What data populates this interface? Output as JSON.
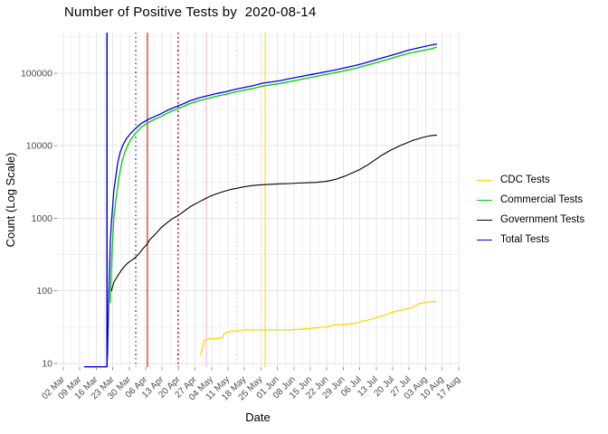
{
  "header": {
    "title": "Number of Positive Tests by  2020-08-14"
  },
  "chart_data": {
    "type": "line",
    "title": "Number of Positive Tests by  2020-08-14",
    "xlabel": "Date",
    "ylabel": "Count (Log Scale)",
    "y_scale": "log10",
    "ylim": [
      9,
      360000
    ],
    "x_unit": "days since 02 Mar 2020",
    "grid": "on",
    "legend_position": "right",
    "x_ticks": [
      {
        "day": 0,
        "label": "02 Mar"
      },
      {
        "day": 7,
        "label": "09 Mar"
      },
      {
        "day": 14,
        "label": "16 Mar"
      },
      {
        "day": 21,
        "label": "23 Mar"
      },
      {
        "day": 28,
        "label": "30 Mar"
      },
      {
        "day": 35,
        "label": "06 Apr"
      },
      {
        "day": 42,
        "label": "13 Apr"
      },
      {
        "day": 49,
        "label": "20 Apr"
      },
      {
        "day": 56,
        "label": "27 Apr"
      },
      {
        "day": 63,
        "label": "04 May"
      },
      {
        "day": 70,
        "label": "11 May"
      },
      {
        "day": 77,
        "label": "18 May"
      },
      {
        "day": 84,
        "label": "25 May"
      },
      {
        "day": 91,
        "label": "01 Jun"
      },
      {
        "day": 98,
        "label": "08 Jun"
      },
      {
        "day": 105,
        "label": "15 Jun"
      },
      {
        "day": 112,
        "label": "22 Jun"
      },
      {
        "day": 119,
        "label": "29 Jun"
      },
      {
        "day": 126,
        "label": "06 Jul"
      },
      {
        "day": 133,
        "label": "13 Jul"
      },
      {
        "day": 140,
        "label": "20 Jul"
      },
      {
        "day": 147,
        "label": "27 Jul"
      },
      {
        "day": 154,
        "label": "03 Aug"
      },
      {
        "day": 161,
        "label": "10 Aug"
      },
      {
        "day": 168,
        "label": "17 Aug"
      }
    ],
    "y_ticks": [
      {
        "value": 10,
        "label": "10"
      },
      {
        "value": 100,
        "label": "100"
      },
      {
        "value": 1000,
        "label": "1000"
      },
      {
        "value": 10000,
        "label": "10000"
      },
      {
        "value": 100000,
        "label": "100000"
      }
    ],
    "vlines": [
      {
        "day": 18.5,
        "color": "#0000CD",
        "dash": "solid"
      },
      {
        "day": 30.8,
        "color": "#00008B",
        "dash": "dotted"
      },
      {
        "day": 35.8,
        "color": "#CC0000",
        "dash": "solid"
      },
      {
        "day": 48.8,
        "color": "#CC0000",
        "dash": "dotted"
      },
      {
        "day": 60.8,
        "color": "#FFAEC0",
        "dash": "solid"
      },
      {
        "day": 73.8,
        "color": "#FFD5DE",
        "dash": "dotted"
      },
      {
        "day": 85.8,
        "color": "#FFD700",
        "dash": "solid"
      }
    ],
    "series": [
      {
        "name": "CDC Tests",
        "color": "#FFD700",
        "width": 1.3,
        "days": [
          58.1,
          58.8,
          59.2,
          60.0,
          62.7,
          65.4,
          67.7,
          68.5,
          70.0,
          71.5,
          73.8,
          76.2,
          80.8,
          88.5,
          96.2,
          103.8,
          107.7,
          112.3,
          115.4,
          118.5,
          121.5,
          124.6,
          126.9,
          130.0,
          133.1,
          136.2,
          139.2,
          142.3,
          145.4,
          148.1,
          150.0,
          151.5,
          153.8,
          156.2,
          158.8
        ],
        "counts": [
          13,
          15,
          17,
          21,
          22,
          22,
          23,
          26,
          27,
          28,
          28,
          29,
          29,
          29,
          29,
          30,
          31,
          32,
          34,
          34,
          35,
          36,
          38,
          40,
          43,
          46,
          50,
          53,
          56,
          58,
          64,
          67,
          69,
          71,
          71
        ]
      },
      {
        "name": "Commercial Tests",
        "color": "#00CC00",
        "width": 1.3,
        "days": [
          20.0,
          20.4,
          20.8,
          21.2,
          21.5,
          22.3,
          23.1,
          23.8,
          25.0,
          26.2,
          27.3,
          28.8,
          30.8,
          33.1,
          35.8,
          38.5,
          41.2,
          44.2,
          47.3,
          50.8,
          53.8,
          57.7,
          61.5,
          65.4,
          69.2,
          73.1,
          76.9,
          80.8,
          84.6,
          88.5,
          92.3,
          96.2,
          100.0,
          103.8,
          107.7,
          111.5,
          115.4,
          119.2,
          123.1,
          126.9,
          130.8,
          134.6,
          138.5,
          142.3,
          146.2,
          150.0,
          153.8,
          156.5,
          158.8
        ],
        "counts": [
          68,
          187,
          380,
          675,
          1040,
          1740,
          2680,
          3880,
          6150,
          8180,
          10000,
          12300,
          14900,
          17900,
          20600,
          22800,
          24900,
          28000,
          31000,
          34400,
          38100,
          41500,
          44800,
          48100,
          51100,
          54800,
          58100,
          61500,
          66000,
          69000,
          71900,
          76100,
          80500,
          85200,
          90100,
          95400,
          101000,
          107000,
          114000,
          123000,
          133000,
          144000,
          156000,
          170000,
          184000,
          196000,
          208000,
          216000,
          228000
        ]
      },
      {
        "name": "Government Tests",
        "color": "#000000",
        "width": 1.1,
        "days": [
          20.4,
          21.5,
          23.1,
          24.6,
          26.2,
          27.7,
          29.2,
          30.8,
          32.3,
          33.8,
          35.4,
          36.9,
          38.5,
          40.0,
          41.5,
          43.1,
          44.6,
          46.2,
          48.1,
          50.0,
          51.9,
          53.8,
          55.8,
          57.7,
          59.6,
          61.5,
          63.5,
          65.4,
          67.3,
          69.2,
          71.2,
          73.1,
          76.9,
          80.8,
          84.6,
          88.5,
          92.3,
          96.2,
          100.0,
          103.8,
          107.7,
          111.5,
          114.2,
          116.2,
          118.1,
          120.0,
          121.9,
          123.8,
          125.8,
          127.7,
          129.6,
          131.5,
          133.5,
          135.4,
          137.3,
          139.2,
          141.2,
          143.1,
          145.0,
          146.9,
          148.8,
          150.8,
          152.7,
          154.6,
          156.5,
          158.8
        ],
        "counts": [
          99,
          132,
          161,
          191,
          221,
          247,
          265,
          293,
          329,
          382,
          430,
          513,
          577,
          649,
          740,
          818,
          894,
          977,
          1060,
          1160,
          1290,
          1430,
          1560,
          1680,
          1810,
          1950,
          2070,
          2190,
          2290,
          2390,
          2490,
          2560,
          2710,
          2830,
          2900,
          2940,
          2980,
          3010,
          3050,
          3090,
          3120,
          3210,
          3340,
          3470,
          3650,
          3840,
          4090,
          4350,
          4650,
          5050,
          5480,
          6060,
          6700,
          7400,
          7990,
          8700,
          9300,
          9990,
          10600,
          11200,
          11900,
          12400,
          13000,
          13400,
          13800,
          14000
        ]
      },
      {
        "name": "Total Tests",
        "color": "#0000EE",
        "width": 1.3,
        "days": [
          8.8,
          18.5,
          18.8,
          19.2,
          19.6,
          20.0,
          20.4,
          20.8,
          21.5,
          22.3,
          23.1,
          24.2,
          25.4,
          26.9,
          28.8,
          30.8,
          33.1,
          35.8,
          38.5,
          41.2,
          44.2,
          47.3,
          50.8,
          53.8,
          57.7,
          61.5,
          65.4,
          69.2,
          73.1,
          76.9,
          80.8,
          84.6,
          88.5,
          92.3,
          96.2,
          100.0,
          103.8,
          107.7,
          111.5,
          115.4,
          119.2,
          123.1,
          126.9,
          130.8,
          134.6,
          138.5,
          142.3,
          146.2,
          150.0,
          153.8,
          156.5,
          158.8
        ],
        "counts": [
          9,
          9,
          14,
          59,
          187,
          467,
          826,
          1230,
          2450,
          3770,
          5800,
          8180,
          10300,
          12600,
          15000,
          17400,
          20200,
          22800,
          24900,
          27200,
          30600,
          33800,
          37500,
          41500,
          45400,
          48800,
          52400,
          55400,
          59600,
          63400,
          67400,
          72500,
          75600,
          78900,
          83600,
          88300,
          93400,
          98700,
          104000,
          110000,
          117000,
          125000,
          134000,
          146000,
          158000,
          172000,
          187000,
          204000,
          219000,
          234000,
          243000,
          251000
        ]
      }
    ]
  }
}
